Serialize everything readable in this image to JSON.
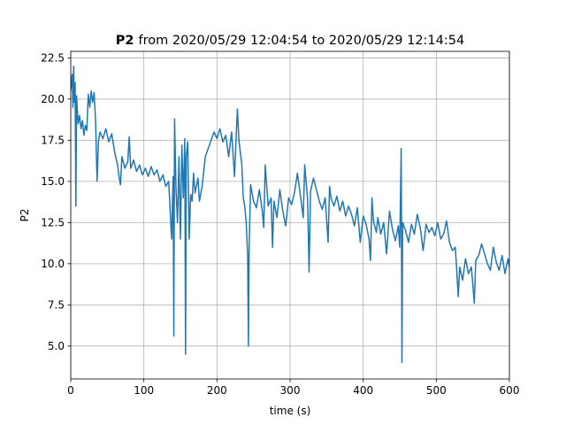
{
  "chart_data": {
    "type": "line",
    "title_name": "P2",
    "title": "from 2020/05/29 12:04:54 to 2020/05/29 12:14:54",
    "x_label": "time (s)",
    "y_label": "P2",
    "color": "#1f77b4",
    "grid": true,
    "xlim": [
      0,
      600
    ],
    "xticks": [
      0,
      100,
      200,
      300,
      400,
      500,
      600
    ],
    "ylim": [
      3.0,
      22.9
    ],
    "yticks": [
      {
        "value": 5,
        "label": "5.0"
      },
      7.5,
      {
        "value": 10,
        "label": "10.0"
      },
      12.5,
      {
        "value": 15,
        "label": "15.0"
      },
      17.5,
      {
        "value": 20,
        "label": "20.0"
      },
      22.5
    ],
    "x": [
      0,
      2,
      3,
      4,
      5,
      6,
      7,
      8,
      10,
      12,
      14,
      16,
      18,
      20,
      22,
      24,
      26,
      28,
      30,
      32,
      34,
      36,
      38,
      40,
      44,
      48,
      52,
      56,
      60,
      64,
      66,
      68,
      70,
      74,
      78,
      80,
      82,
      86,
      90,
      94,
      98,
      102,
      106,
      110,
      114,
      118,
      122,
      126,
      130,
      134,
      136,
      138,
      140,
      141,
      142,
      144,
      146,
      148,
      150,
      152,
      154,
      156,
      157,
      158,
      160,
      162,
      164,
      166,
      168,
      170,
      174,
      176,
      180,
      184,
      188,
      192,
      196,
      200,
      204,
      208,
      212,
      216,
      220,
      224,
      226,
      228,
      230,
      234,
      236,
      238,
      240,
      242,
      243,
      244,
      246,
      250,
      254,
      258,
      262,
      264,
      266,
      270,
      274,
      276,
      278,
      282,
      286,
      290,
      294,
      298,
      302,
      306,
      310,
      314,
      318,
      320,
      324,
      326,
      328,
      332,
      336,
      340,
      344,
      348,
      352,
      354,
      356,
      360,
      364,
      368,
      372,
      376,
      380,
      384,
      388,
      392,
      396,
      400,
      404,
      408,
      410,
      412,
      414,
      418,
      420,
      424,
      428,
      432,
      436,
      440,
      444,
      448,
      450,
      452,
      453,
      454,
      458,
      462,
      466,
      470,
      474,
      478,
      482,
      486,
      490,
      494,
      498,
      502,
      506,
      510,
      514,
      518,
      522,
      526,
      528,
      530,
      532,
      536,
      540,
      544,
      548,
      552,
      554,
      558,
      562,
      566,
      570,
      574,
      578,
      582,
      586,
      590,
      594,
      598,
      600
    ],
    "values": [
      20.5,
      21.5,
      19.5,
      22.0,
      19.8,
      21.0,
      13.5,
      20.2,
      18.5,
      19.0,
      18.2,
      18.7,
      17.8,
      18.4,
      18.1,
      20.3,
      19.5,
      20.5,
      19.8,
      20.4,
      18.6,
      15.0,
      17.5,
      18.0,
      17.6,
      18.2,
      17.4,
      17.9,
      16.8,
      16.0,
      15.3,
      14.8,
      16.5,
      15.8,
      16.2,
      17.7,
      15.8,
      16.3,
      15.6,
      16.0,
      15.4,
      15.8,
      15.3,
      15.9,
      15.4,
      15.7,
      15.0,
      15.4,
      14.7,
      15.0,
      13.2,
      11.5,
      15.3,
      5.6,
      18.8,
      14.5,
      12.5,
      16.5,
      11.5,
      17.2,
      14.0,
      17.6,
      4.5,
      16.5,
      17.4,
      11.5,
      14.2,
      13.8,
      15.5,
      14.3,
      15.2,
      13.8,
      14.8,
      16.5,
      17.0,
      17.5,
      18.0,
      17.6,
      18.2,
      17.4,
      17.8,
      16.5,
      18.0,
      15.3,
      17.5,
      19.4,
      17.5,
      16.0,
      14.0,
      13.5,
      12.5,
      10.5,
      5.0,
      11.0,
      14.8,
      13.8,
      13.4,
      14.5,
      13.2,
      12.2,
      16.0,
      13.5,
      14.0,
      11.0,
      13.8,
      12.8,
      14.5,
      13.2,
      12.3,
      14.0,
      13.6,
      14.3,
      15.5,
      14.2,
      12.8,
      16.0,
      13.9,
      9.5,
      14.4,
      15.2,
      14.5,
      13.8,
      13.3,
      14.0,
      11.3,
      14.7,
      14.0,
      13.5,
      14.1,
      13.2,
      13.8,
      12.9,
      13.5,
      13.0,
      12.3,
      13.4,
      11.3,
      12.9,
      12.4,
      11.5,
      10.2,
      14.0,
      12.6,
      11.9,
      12.8,
      11.8,
      12.5,
      10.6,
      13.2,
      12.1,
      11.4,
      12.3,
      11.0,
      17.0,
      4.0,
      12.5,
      12.0,
      11.3,
      12.4,
      11.8,
      13.0,
      12.2,
      10.8,
      12.4,
      11.9,
      12.2,
      11.7,
      12.5,
      11.5,
      11.8,
      12.6,
      11.3,
      10.8,
      11.0,
      9.6,
      8.0,
      9.8,
      9.0,
      10.3,
      9.4,
      9.8,
      7.6,
      10.2,
      10.5,
      11.2,
      10.6,
      10.0,
      9.6,
      11.0,
      10.1,
      9.6,
      10.5,
      9.4,
      10.3,
      9.8
    ]
  }
}
